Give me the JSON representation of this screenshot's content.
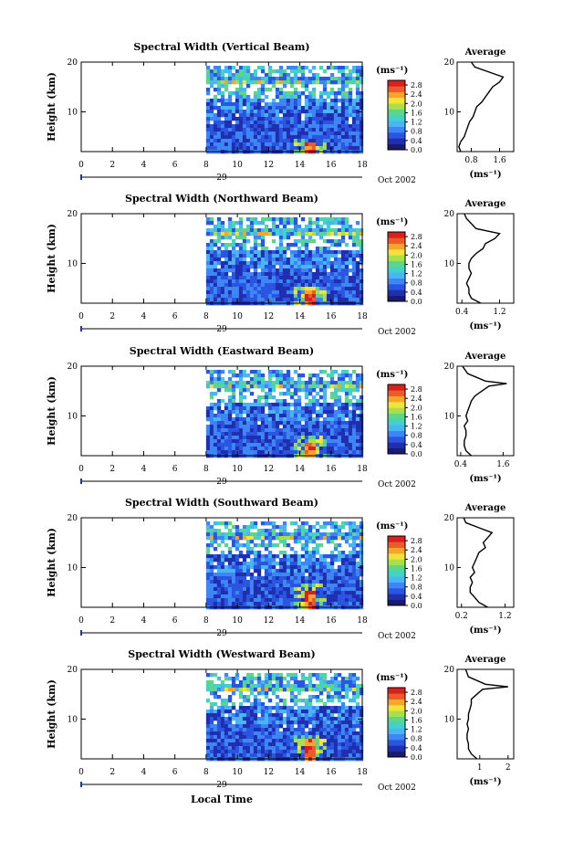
{
  "chart_data": {
    "type": "heatmap",
    "x_axis": {
      "label": "Local Time",
      "ticks": [
        "0",
        "2",
        "4",
        "6",
        "8",
        "10",
        "12",
        "14",
        "16",
        "18"
      ],
      "range": [
        0,
        18
      ],
      "date_label": "29",
      "month_year_label": "Oct 2002"
    },
    "y_axis": {
      "label": "Height (km)",
      "ticks": [
        "10",
        "20"
      ],
      "range": [
        2,
        20
      ]
    },
    "colorbar": {
      "unit_label": "(ms⁻¹)",
      "ticks": [
        "2.8",
        "2.4",
        "2.0",
        "1.6",
        "1.2",
        "0.8",
        "0.4",
        "0.0"
      ],
      "range": [
        0,
        3.0
      ],
      "colors": [
        "#1a1a6e",
        "#1f2fb0",
        "#2a55e0",
        "#3f86f5",
        "#49b6f3",
        "#43d2c8",
        "#5fd58a",
        "#a8e04a",
        "#f3e23c",
        "#f6a52c",
        "#ee5a2a",
        "#d72020"
      ]
    },
    "profile_title": "Average",
    "profile_xlabel": "(ms⁻¹)",
    "data_start_hour": 8,
    "panels": [
      {
        "title": "Spectral Width (Vertical Beam)",
        "profile_ticks": [
          {
            "v": 0.8,
            "t": "0.8"
          },
          {
            "v": 1.6,
            "t": "1.6"
          }
        ],
        "profile_range": [
          0.4,
          2.0
        ],
        "profile": [
          [
            0.5,
            2
          ],
          [
            0.45,
            3
          ],
          [
            0.5,
            4
          ],
          [
            0.6,
            5
          ],
          [
            0.65,
            6
          ],
          [
            0.7,
            7
          ],
          [
            0.75,
            8
          ],
          [
            0.85,
            9
          ],
          [
            0.9,
            10
          ],
          [
            0.95,
            11
          ],
          [
            1.1,
            12
          ],
          [
            1.2,
            13
          ],
          [
            1.3,
            14
          ],
          [
            1.4,
            15
          ],
          [
            1.6,
            16
          ],
          [
            1.7,
            17
          ],
          [
            1.3,
            18
          ],
          [
            0.9,
            19
          ],
          [
            0.8,
            20
          ]
        ]
      },
      {
        "title": "Spectral Width (Northward Beam)",
        "profile_ticks": [
          {
            "v": 0.4,
            "t": "0.4"
          },
          {
            "v": 1.2,
            "t": "1.2"
          }
        ],
        "profile_range": [
          0.3,
          1.5
        ],
        "profile": [
          [
            0.8,
            2
          ],
          [
            0.6,
            3
          ],
          [
            0.55,
            4
          ],
          [
            0.55,
            5
          ],
          [
            0.5,
            6
          ],
          [
            0.55,
            7
          ],
          [
            0.6,
            8
          ],
          [
            0.55,
            9
          ],
          [
            0.55,
            10
          ],
          [
            0.6,
            11
          ],
          [
            0.7,
            12
          ],
          [
            0.85,
            13
          ],
          [
            0.9,
            14
          ],
          [
            1.1,
            15
          ],
          [
            1.2,
            16
          ],
          [
            0.7,
            17
          ],
          [
            0.6,
            18
          ],
          [
            0.5,
            19
          ],
          [
            0.45,
            20
          ]
        ]
      },
      {
        "title": "Spectral Width (Eastward Beam)",
        "profile_ticks": [
          {
            "v": 0.4,
            "t": "0.4"
          },
          {
            "v": 1.6,
            "t": "1.6"
          }
        ],
        "profile_range": [
          0.3,
          1.9
        ],
        "profile": [
          [
            0.7,
            2
          ],
          [
            0.55,
            3
          ],
          [
            0.5,
            4
          ],
          [
            0.5,
            5
          ],
          [
            0.55,
            6
          ],
          [
            0.55,
            7
          ],
          [
            0.5,
            8
          ],
          [
            0.6,
            9
          ],
          [
            0.55,
            10
          ],
          [
            0.6,
            11
          ],
          [
            0.65,
            12
          ],
          [
            0.7,
            13
          ],
          [
            0.8,
            14
          ],
          [
            1.0,
            15
          ],
          [
            1.2,
            16
          ],
          [
            1.7,
            16.5
          ],
          [
            1.1,
            17
          ],
          [
            0.6,
            18.5
          ],
          [
            0.45,
            20
          ]
        ]
      },
      {
        "title": "Spectral Width (Southward Beam)",
        "profile_ticks": [
          {
            "v": 0.2,
            "t": "0.2"
          },
          {
            "v": 1.2,
            "t": "1.2"
          }
        ],
        "profile_range": [
          0.1,
          1.4
        ],
        "profile": [
          [
            0.8,
            2
          ],
          [
            0.6,
            3
          ],
          [
            0.5,
            4
          ],
          [
            0.4,
            5
          ],
          [
            0.4,
            6
          ],
          [
            0.45,
            7
          ],
          [
            0.4,
            8
          ],
          [
            0.5,
            9
          ],
          [
            0.45,
            10
          ],
          [
            0.5,
            11
          ],
          [
            0.55,
            12
          ],
          [
            0.6,
            13
          ],
          [
            0.75,
            14
          ],
          [
            0.7,
            15
          ],
          [
            0.8,
            16
          ],
          [
            0.9,
            17
          ],
          [
            0.6,
            18
          ],
          [
            0.3,
            19
          ],
          [
            0.25,
            20
          ]
        ]
      },
      {
        "title": "Spectral Width (Westward Beam)",
        "profile_ticks": [
          {
            "v": 1.0,
            "t": "1"
          },
          {
            "v": 2.0,
            "t": "2"
          }
        ],
        "profile_range": [
          0.2,
          2.2
        ],
        "profile": [
          [
            0.9,
            2
          ],
          [
            0.7,
            3
          ],
          [
            0.6,
            4
          ],
          [
            0.6,
            5
          ],
          [
            0.55,
            6
          ],
          [
            0.55,
            7
          ],
          [
            0.6,
            8
          ],
          [
            0.55,
            9
          ],
          [
            0.6,
            10
          ],
          [
            0.6,
            11
          ],
          [
            0.65,
            12
          ],
          [
            0.7,
            13
          ],
          [
            0.7,
            14
          ],
          [
            0.9,
            15
          ],
          [
            1.1,
            16
          ],
          [
            2.0,
            16.5
          ],
          [
            1.2,
            17
          ],
          [
            0.6,
            18.5
          ],
          [
            0.5,
            20
          ]
        ]
      }
    ]
  }
}
